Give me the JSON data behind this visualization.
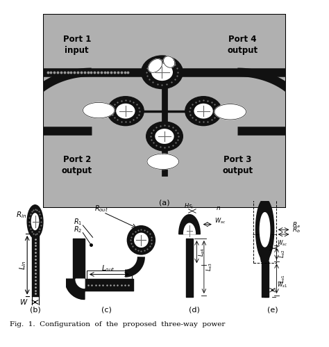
{
  "bg_color": "#ffffff",
  "gray_color": "#b0b0b0",
  "dark_color": "#111111",
  "fig_width": 4.74,
  "fig_height": 4.99,
  "caption": "Fig.  1.  Configuration  of  the  proposed  three-way  power",
  "subfig_labels": [
    "(a)",
    "(b)",
    "(c)",
    "(d)",
    "(e)"
  ]
}
